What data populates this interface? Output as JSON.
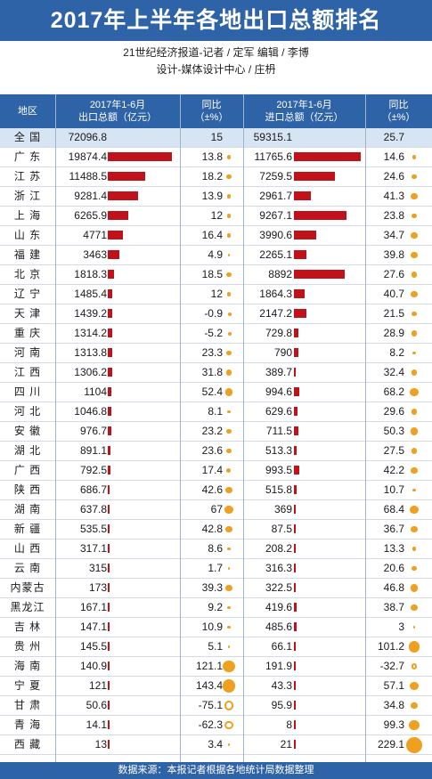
{
  "title": "2017年上半年各地出口总额排名",
  "credits": {
    "line1": "21世纪经济报道-记者 / 定军   编辑 / 李博",
    "line2": "设计-媒体设计中心 / 庄枬"
  },
  "header": {
    "region": "地区",
    "export_line1": "2017年1-6月",
    "export_line2": "出口总额（亿元）",
    "yoy_line1": "同比",
    "yoy_line2": "（±%）",
    "import_line1": "2017年1-6月",
    "import_line2": "进口总额（亿元）",
    "yoy2_line1": "同比",
    "yoy2_line2": "（±%）"
  },
  "footer": "数据来源：本报记者根据各地统计局数据整理",
  "colors": {
    "header_blue": "#2f63a8",
    "bar_red": "#c1121c",
    "dot_orange": "#f0a020",
    "total_row": "#d7e4f4"
  },
  "chart_data": {
    "type": "table",
    "title": "2017年上半年各地出口总额排名",
    "columns": [
      "地区",
      "2017年1-6月出口总额（亿元）",
      "同比（±%）",
      "2017年1-6月进口总额（亿元）",
      "同比（±%）"
    ],
    "rows": [
      {
        "region": "全 国",
        "export": 72096.8,
        "export_yoy": 15,
        "import": 59315.1,
        "import_yoy": 25.7,
        "total": true
      },
      {
        "region": "广 东",
        "export": 19874.4,
        "export_yoy": 13.8,
        "import": 11765.6,
        "import_yoy": 14.6
      },
      {
        "region": "江 苏",
        "export": 11488.5,
        "export_yoy": 18.2,
        "import": 7259.5,
        "import_yoy": 24.6
      },
      {
        "region": "浙 江",
        "export": 9281.4,
        "export_yoy": 13.9,
        "import": 2961.7,
        "import_yoy": 41.3
      },
      {
        "region": "上 海",
        "export": 6265.9,
        "export_yoy": 12,
        "import": 9267.1,
        "import_yoy": 23.8
      },
      {
        "region": "山 东",
        "export": 4771,
        "export_yoy": 16.4,
        "import": 3990.6,
        "import_yoy": 34.7
      },
      {
        "region": "福 建",
        "export": 3463,
        "export_yoy": 4.9,
        "import": 2265.1,
        "import_yoy": 39.8
      },
      {
        "region": "北 京",
        "export": 1818.3,
        "export_yoy": 18.5,
        "import": 8892,
        "import_yoy": 27.6
      },
      {
        "region": "辽 宁",
        "export": 1485.4,
        "export_yoy": 12,
        "import": 1864.3,
        "import_yoy": 40.7
      },
      {
        "region": "天 津",
        "export": 1439.2,
        "export_yoy": -0.9,
        "import": 2147.2,
        "import_yoy": 21.5
      },
      {
        "region": "重 庆",
        "export": 1314.2,
        "export_yoy": -5.2,
        "import": 729.8,
        "import_yoy": 28.9
      },
      {
        "region": "河 南",
        "export": 1313.8,
        "export_yoy": 23.3,
        "import": 790,
        "import_yoy": 8.2
      },
      {
        "region": "江 西",
        "export": 1306.2,
        "export_yoy": 31.8,
        "import": 389.7,
        "import_yoy": 32.4
      },
      {
        "region": "四 川",
        "export": 1104,
        "export_yoy": 52.4,
        "import": 994.6,
        "import_yoy": 68.2
      },
      {
        "region": "河 北",
        "export": 1046.8,
        "export_yoy": 8.1,
        "import": 629.6,
        "import_yoy": 29.6
      },
      {
        "region": "安 徽",
        "export": 976.7,
        "export_yoy": 23.2,
        "import": 711.5,
        "import_yoy": 50.3
      },
      {
        "region": "湖 北",
        "export": 891.1,
        "export_yoy": 23.6,
        "import": 513.3,
        "import_yoy": 27.5
      },
      {
        "region": "广 西",
        "export": 792.5,
        "export_yoy": 17.4,
        "import": 993.5,
        "import_yoy": 42.2
      },
      {
        "region": "陕 西",
        "export": 686.7,
        "export_yoy": 42.6,
        "import": 515.8,
        "import_yoy": 10.7
      },
      {
        "region": "湖 南",
        "export": 637.8,
        "export_yoy": 67,
        "import": 369,
        "import_yoy": 68.4
      },
      {
        "region": "新 疆",
        "export": 535.5,
        "export_yoy": 42.8,
        "import": 87.5,
        "import_yoy": 36.7
      },
      {
        "region": "山 西",
        "export": 317.1,
        "export_yoy": 8.6,
        "import": 208.2,
        "import_yoy": 13.3
      },
      {
        "region": "云 南",
        "export": 315,
        "export_yoy": 1.7,
        "import": 316.3,
        "import_yoy": 20.6
      },
      {
        "region": "内蒙古",
        "export": 173,
        "export_yoy": 39.3,
        "import": 322.5,
        "import_yoy": 46.8
      },
      {
        "region": "黑龙江",
        "export": 167.1,
        "export_yoy": 9.2,
        "import": 419.6,
        "import_yoy": 38.7
      },
      {
        "region": "吉 林",
        "export": 147.1,
        "export_yoy": 10.9,
        "import": 485.6,
        "import_yoy": 3
      },
      {
        "region": "贵 州",
        "export": 145.5,
        "export_yoy": 5.1,
        "import": 66.1,
        "import_yoy": 101.2
      },
      {
        "region": "海 南",
        "export": 140.9,
        "export_yoy": 121.1,
        "import": 191.9,
        "import_yoy": -32.7
      },
      {
        "region": "宁 夏",
        "export": 121,
        "export_yoy": 143.4,
        "import": 43.3,
        "import_yoy": 57.1
      },
      {
        "region": "甘 肃",
        "export": 50.6,
        "export_yoy": -75.1,
        "import": 95.9,
        "import_yoy": 34.8
      },
      {
        "region": "青 海",
        "export": 14.1,
        "export_yoy": -62.3,
        "import": 8,
        "import_yoy": 99.3
      },
      {
        "region": "西 藏",
        "export": 13,
        "export_yoy": 3.4,
        "import": 21,
        "import_yoy": 229.1
      }
    ]
  }
}
